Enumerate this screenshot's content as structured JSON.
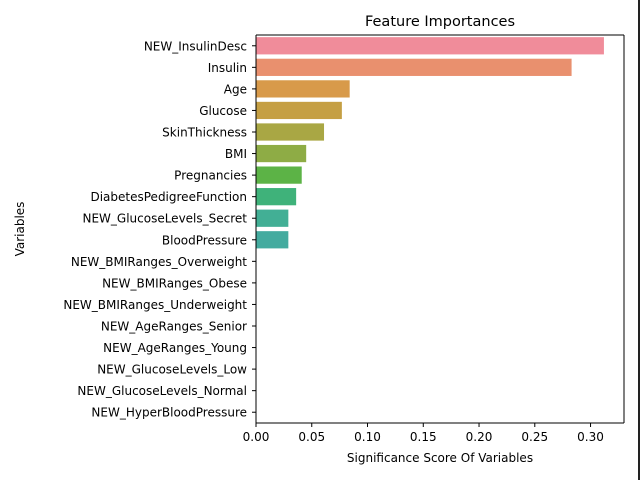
{
  "chart_data": {
    "type": "bar",
    "orientation": "horizontal",
    "title": "Feature Importances",
    "xlabel": "Significance Score Of Variables",
    "ylabel": "Variables",
    "xlim": [
      0,
      0.33
    ],
    "xticks": [
      "0.00",
      "0.05",
      "0.10",
      "0.15",
      "0.20",
      "0.25",
      "0.30"
    ],
    "xtick_values": [
      0,
      0.05,
      0.1,
      0.15,
      0.2,
      0.25,
      0.3
    ],
    "grid": false,
    "categories": [
      "NEW_InsulinDesc",
      "Insulin",
      "Age",
      "Glucose",
      "SkinThickness",
      "BMI",
      "Pregnancies",
      "DiabetesPedigreeFunction",
      "NEW_GlucoseLevels_Secret",
      "BloodPressure",
      "NEW_BMIRanges_Overweight",
      "NEW_BMIRanges_Obese",
      "NEW_BMIRanges_Underweight",
      "NEW_AgeRanges_Senior",
      "NEW_AgeRanges_Young",
      "NEW_GlucoseLevels_Low",
      "NEW_GlucoseLevels_Normal",
      "NEW_HyperBloodPressure"
    ],
    "values": [
      0.312,
      0.283,
      0.084,
      0.077,
      0.061,
      0.045,
      0.041,
      0.036,
      0.029,
      0.029,
      0,
      0,
      0,
      0,
      0,
      0,
      0,
      0
    ],
    "colors": [
      "#f08c9a",
      "#e9906e",
      "#d89a4a",
      "#c59f43",
      "#a9a744",
      "#8eac45",
      "#5cb346",
      "#3fb27a",
      "#42af95",
      "#44ab9f",
      "#46a8ac",
      "#49a6bb",
      "#50a2cc",
      "#7698de",
      "#aa8ee4",
      "#d27fe0",
      "#e67ccc",
      "#f083b4"
    ]
  }
}
